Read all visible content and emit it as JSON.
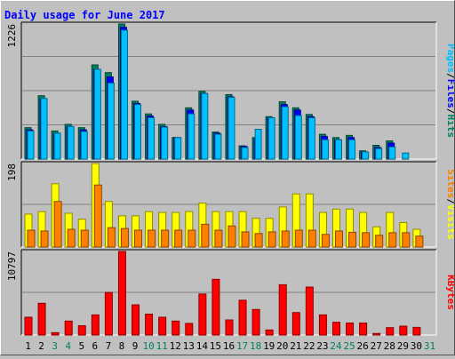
{
  "chart_data": {
    "type": "bar",
    "title": "Daily usage for June 2017",
    "categories": [
      "1",
      "2",
      "3",
      "4",
      "5",
      "6",
      "7",
      "8",
      "9",
      "10",
      "11",
      "12",
      "13",
      "14",
      "15",
      "16",
      "17",
      "18",
      "19",
      "20",
      "21",
      "22",
      "23",
      "24",
      "25",
      "26",
      "27",
      "28",
      "29",
      "30",
      "31"
    ],
    "weekend_days": [
      "3",
      "4",
      "10",
      "11",
      "17",
      "18",
      "24",
      "25",
      "31"
    ],
    "panels": [
      {
        "id": "top",
        "ymax_label": "1226",
        "ymax": 1226,
        "right_label": [
          "Pages",
          "Files",
          "Hits"
        ],
        "series": [
          {
            "name": "Hits",
            "color": "#008060",
            "values": [
              285,
              575,
              255,
              315,
              285,
              855,
              785,
              1226,
              525,
              410,
              315,
              195,
              465,
              615,
              245,
              585,
              120,
              195,
              385,
              520,
              465,
              405,
              225,
              195,
              215,
              75,
              125,
              165,
              0,
              0,
              0
            ]
          },
          {
            "name": "Files",
            "color": "#0000ff",
            "values": [
              265,
              545,
              235,
              295,
              265,
              815,
              745,
              1196,
              505,
              390,
              295,
              195,
              445,
              595,
              235,
              565,
              115,
              185,
              375,
              495,
              445,
              385,
              205,
              175,
              195,
              65,
              105,
              145,
              0,
              0,
              0
            ]
          },
          {
            "name": "Pages",
            "color": "#00c0ff",
            "values": [
              255,
              550,
              235,
              295,
              250,
              815,
              690,
              1170,
              495,
              375,
              290,
              195,
              410,
              595,
              225,
              560,
              105,
              270,
              375,
              475,
              395,
              375,
              175,
              175,
              175,
              65,
              95,
              110,
              55,
              0,
              0
            ]
          }
        ]
      },
      {
        "id": "mid",
        "ymax_label": "198",
        "ymax": 198,
        "right_label": [
          "Sites",
          "Visits"
        ],
        "series": [
          {
            "name": "Visits",
            "color": "#ffff00",
            "values": [
              78,
              84,
              150,
              80,
              66,
              198,
              108,
              74,
              74,
              84,
              82,
              82,
              84,
              104,
              84,
              84,
              84,
              68,
              68,
              95,
              126,
              126,
              82,
              90,
              90,
              82,
              48,
              82,
              58,
              42,
              0
            ]
          },
          {
            "name": "Sites",
            "color": "#ff8000",
            "values": [
              40,
              38,
              108,
              42,
              40,
              147,
              46,
              44,
              40,
              40,
              40,
              40,
              40,
              54,
              40,
              50,
              36,
              32,
              36,
              38,
              40,
              40,
              30,
              38,
              35,
              34,
              28,
              34,
              34,
              26,
              0
            ]
          }
        ]
      },
      {
        "id": "bot",
        "ymax_label": "10797",
        "ymax": 10797,
        "right_label": [
          "KBytes"
        ],
        "series": [
          {
            "name": "KBytes",
            "color": "#ff0000",
            "values": [
              2300,
              4100,
              300,
              1800,
              1200,
              2600,
              5500,
              10797,
              3900,
              2700,
              2300,
              1800,
              1500,
              5300,
              7200,
              1950,
              4500,
              3300,
              650,
              6500,
              2900,
              6200,
              2600,
              1650,
              1550,
              1550,
              200,
              950,
              1150,
              990,
              0
            ]
          }
        ]
      }
    ]
  }
}
